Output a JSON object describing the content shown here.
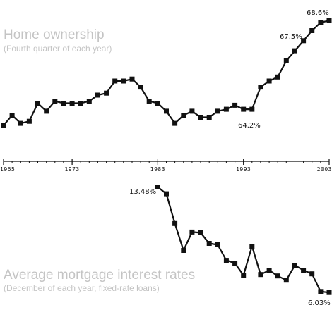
{
  "colors": {
    "line": "#111111",
    "title": "#c4c4c4",
    "text": "#111111",
    "background": "#ffffff"
  },
  "chart_data": [
    {
      "type": "line",
      "title": "Home ownership",
      "subtitle": "(Fourth quarter of each year)",
      "x": [
        1965,
        1966,
        1967,
        1968,
        1969,
        1970,
        1971,
        1972,
        1973,
        1974,
        1975,
        1976,
        1977,
        1978,
        1979,
        1980,
        1981,
        1982,
        1983,
        1984,
        1985,
        1986,
        1987,
        1988,
        1989,
        1990,
        1991,
        1992,
        1993,
        1994,
        1995,
        1996,
        1997,
        1998,
        1999,
        2000,
        2001,
        2002,
        2003
      ],
      "y": [
        63.4,
        63.9,
        63.5,
        63.6,
        64.5,
        64.1,
        64.6,
        64.5,
        64.5,
        64.5,
        64.6,
        64.9,
        65.0,
        65.6,
        65.6,
        65.7,
        65.3,
        64.6,
        64.5,
        64.1,
        63.5,
        63.9,
        64.1,
        63.8,
        63.8,
        64.1,
        64.2,
        64.4,
        64.2,
        64.2,
        65.3,
        65.6,
        65.8,
        66.6,
        67.1,
        67.6,
        68.1,
        68.5,
        68.6
      ],
      "ylim": [
        62.7,
        69.2
      ],
      "xlim": [
        1965,
        2003
      ],
      "x_ticks": [
        "1965",
        "1973",
        "1983",
        "1993",
        "2003"
      ],
      "annotations": [
        "64.2%",
        "67.5%",
        "68.6%"
      ],
      "grid": false,
      "legend": "none"
    },
    {
      "type": "line",
      "title": "Average mortgage interest rates",
      "subtitle": "(December of each year, fixed-rate loans)",
      "x": [
        1983,
        1984,
        1985,
        1986,
        1987,
        1988,
        1989,
        1990,
        1991,
        1992,
        1993,
        1994,
        1995,
        1996,
        1997,
        1998,
        1999,
        2000,
        2001,
        2002,
        2003
      ],
      "y": [
        13.48,
        13.0,
        10.9,
        9.0,
        10.3,
        10.25,
        9.5,
        9.4,
        8.3,
        8.1,
        7.25,
        9.3,
        7.3,
        7.6,
        7.2,
        6.9,
        7.95,
        7.6,
        7.35,
        6.1,
        6.03
      ],
      "ylim": [
        4.3,
        14.0
      ],
      "xlim": [
        1965,
        2003
      ],
      "annotations": [
        "13.48%",
        "6.03%"
      ],
      "grid": false,
      "legend": "none"
    }
  ]
}
